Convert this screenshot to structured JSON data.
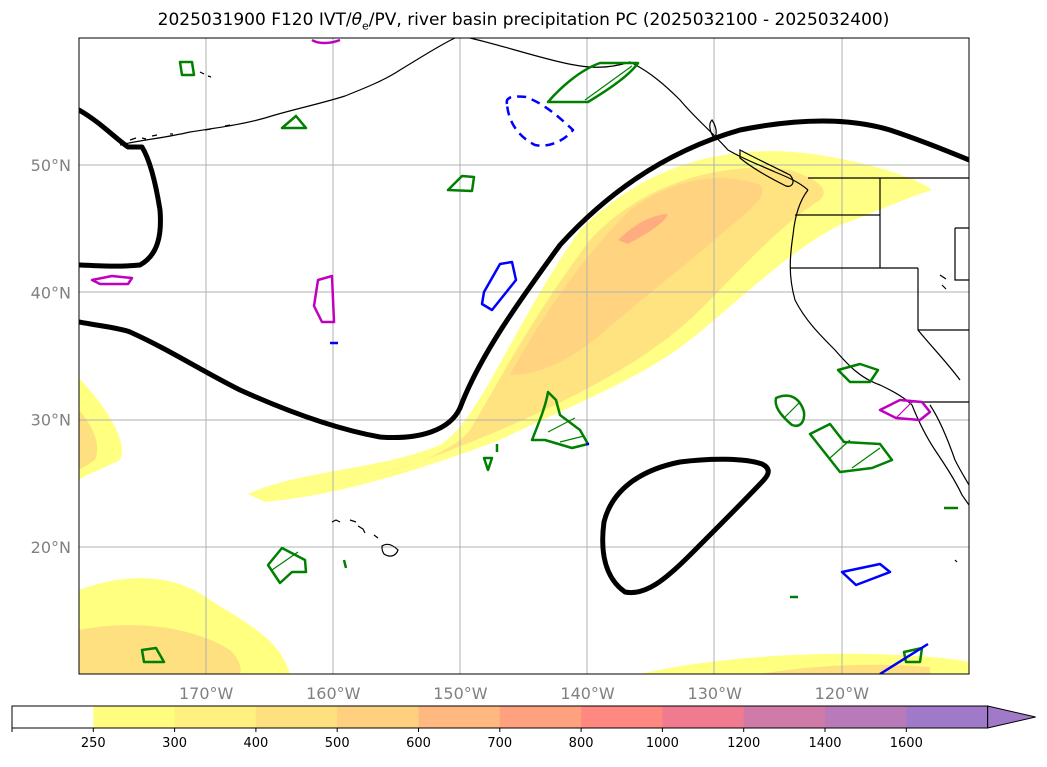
{
  "title": {
    "prefix": "2025031900 F120 IVT/",
    "theta": "θ",
    "sub": "e",
    "suffix": "/PV, river basin precipitation PC (2025032100 - 2025032400)"
  },
  "map": {
    "projection": "equirectangular",
    "lon_range": [
      -180,
      -110
    ],
    "lat_range": [
      10,
      60
    ],
    "lat_ticks": [
      {
        "value": 20,
        "label": "20°N"
      },
      {
        "value": 30,
        "label": "30°N"
      },
      {
        "value": 40,
        "label": "40°N"
      },
      {
        "value": 50,
        "label": "50°N"
      }
    ],
    "lon_ticks": [
      {
        "value": -170,
        "label": "170°W"
      },
      {
        "value": -160,
        "label": "160°W"
      },
      {
        "value": -150,
        "label": "150°W"
      },
      {
        "value": -140,
        "label": "140°W"
      },
      {
        "value": -130,
        "label": "130°W"
      },
      {
        "value": -120,
        "label": "120°W"
      }
    ],
    "grid": true
  },
  "colorbar": {
    "levels": [
      "250",
      "300",
      "400",
      "500",
      "600",
      "700",
      "800",
      "1000",
      "1200",
      "1400",
      "1600"
    ],
    "colors": [
      "#ffffff",
      "#fffc7f",
      "#fff07f",
      "#ffe07f",
      "#ffd07f",
      "#ffb87f",
      "#ffa07f",
      "#ff8880",
      "#f07a90",
      "#d07aa8",
      "#b87ab8",
      "#a07ac8"
    ],
    "extend": "max"
  },
  "colors": {
    "ivt_light": "#ffff80",
    "ivt_mid": "#ffe080",
    "ivt_core": "#ffa880",
    "pv_contour": "#000000",
    "pc_green": "#008000",
    "pc_magenta": "#c000c0",
    "pc_blue": "#0000ff"
  }
}
